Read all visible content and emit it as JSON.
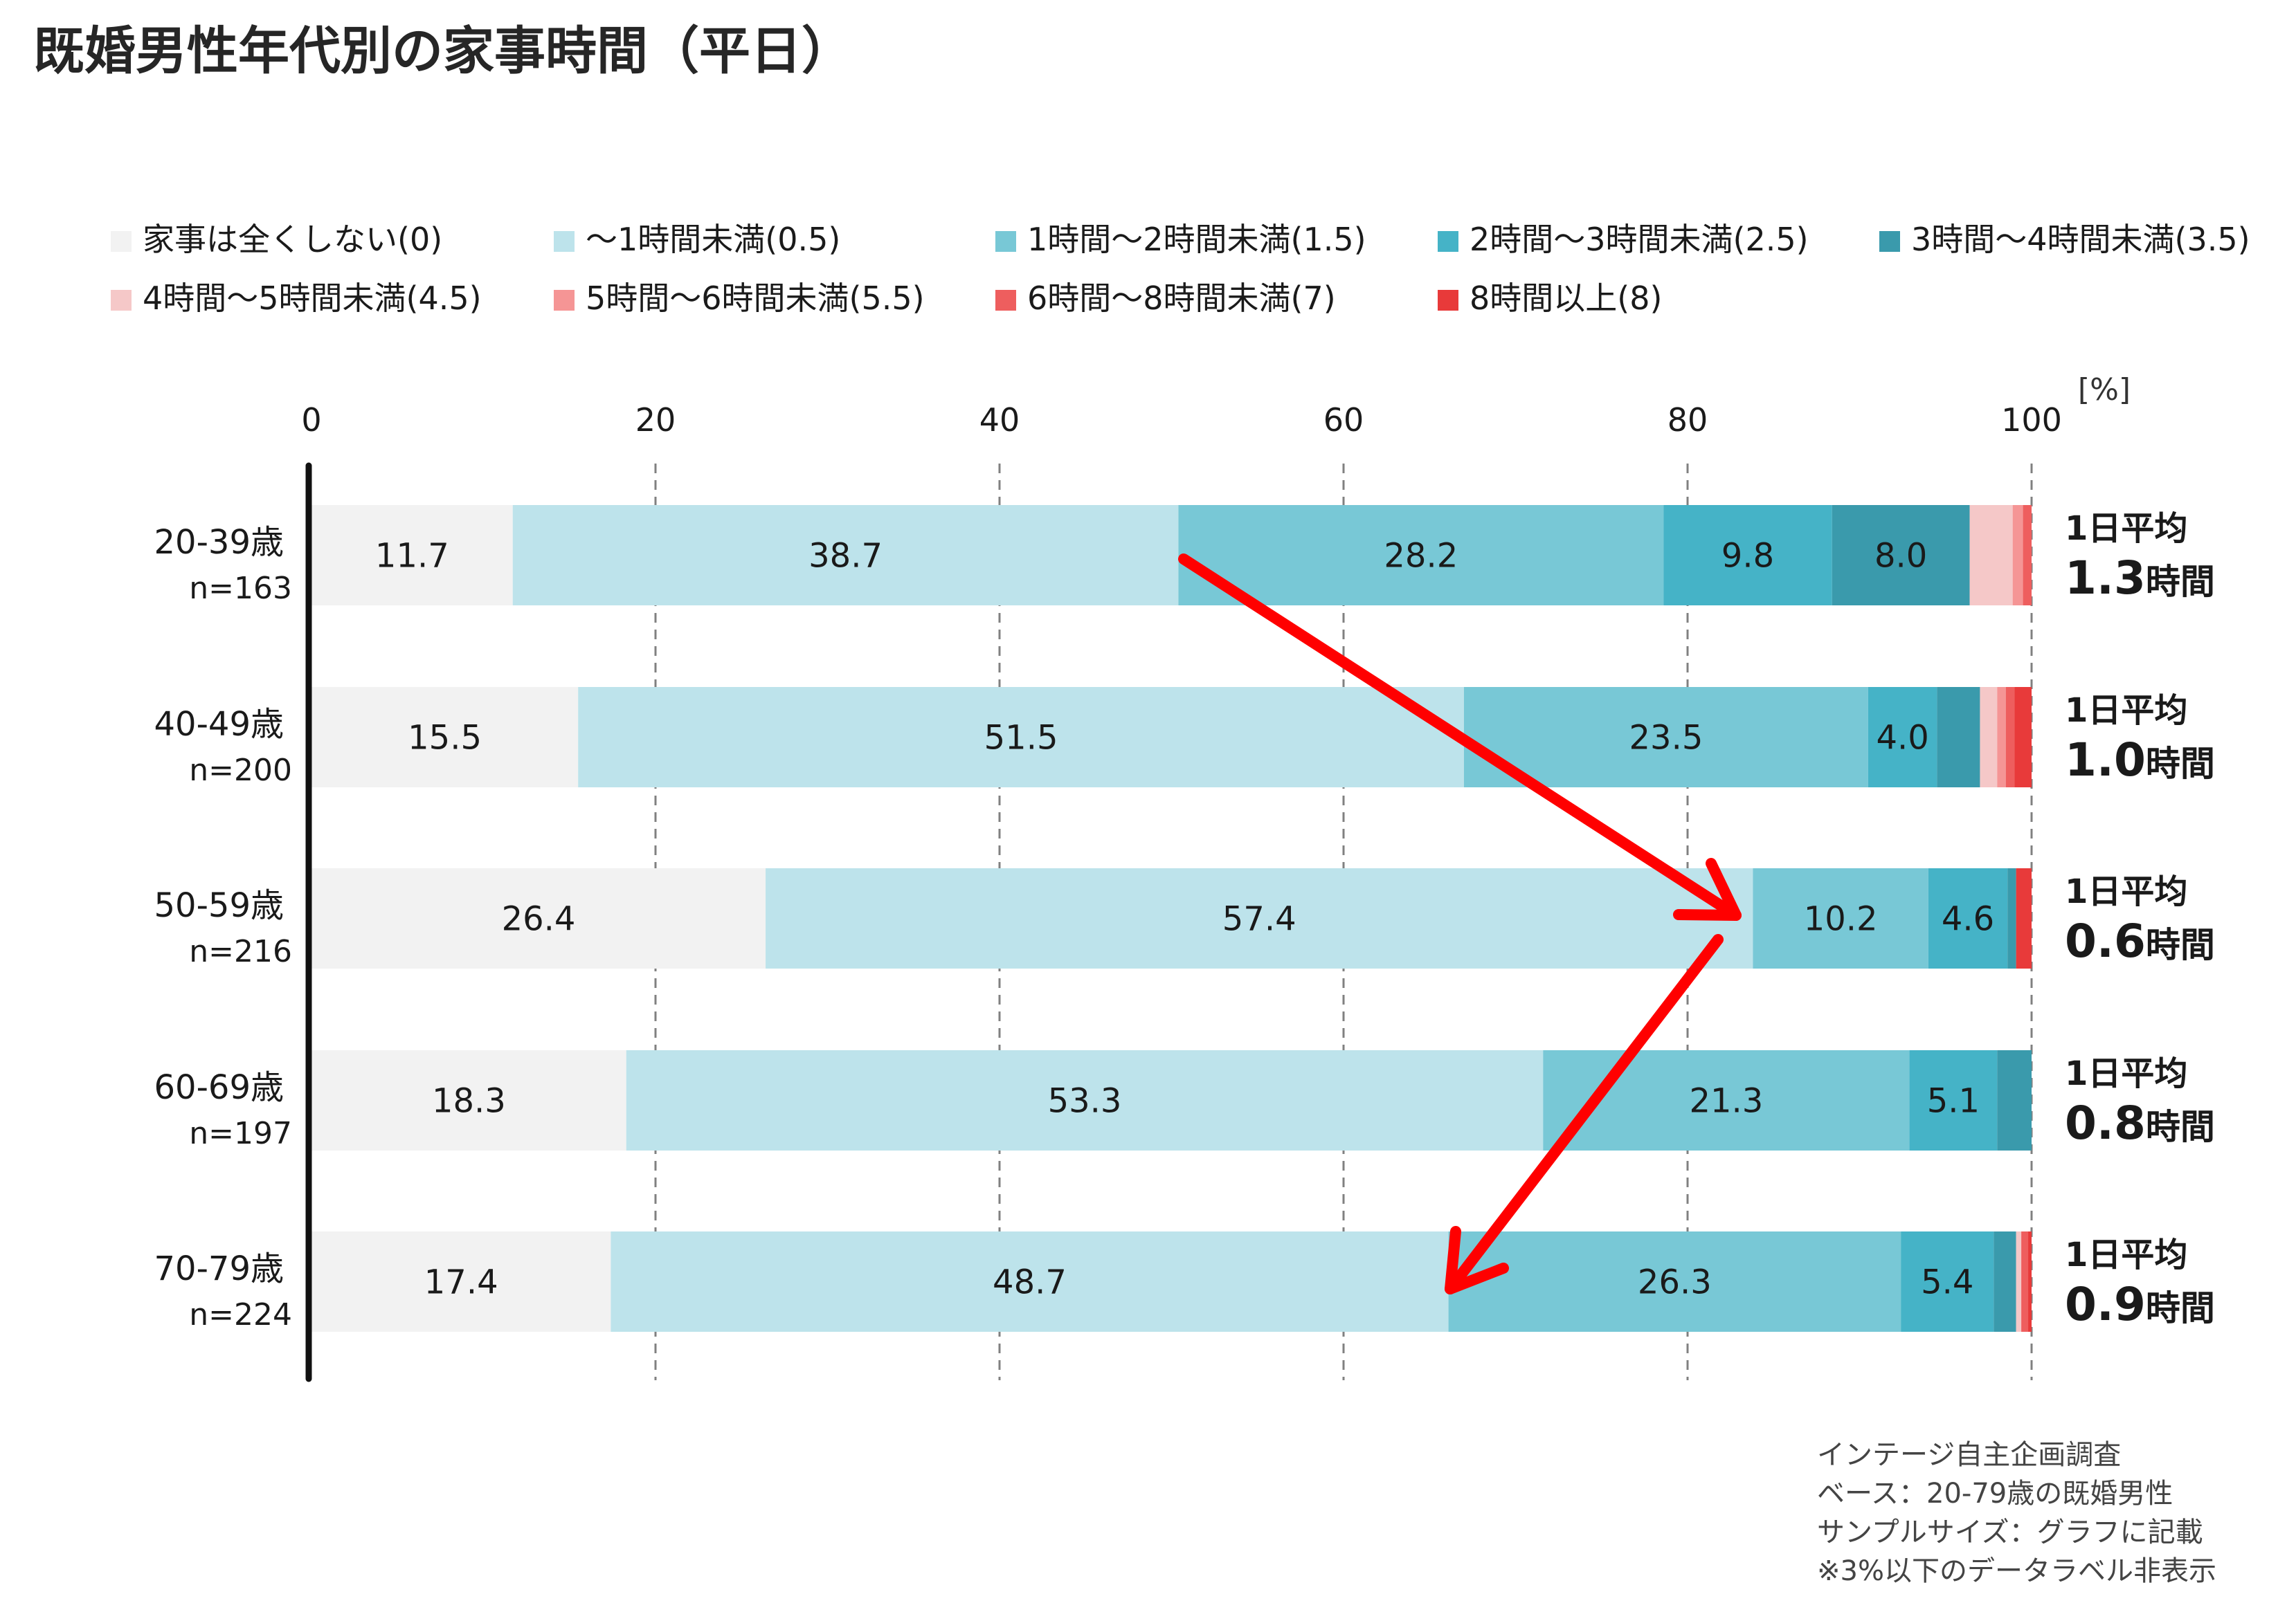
{
  "title": "既婚男性年代別の家事時間（平日）",
  "unit_label": "[%]",
  "source_lines": [
    "インテージ自主企画調査",
    "ベース：20-79歳の既婚男性",
    "サンプルサイズ：グラフに記載",
    "※3%以下のデータラベル非表示"
  ],
  "chart_data": {
    "type": "bar",
    "orientation": "horizontal",
    "stacked": true,
    "xlim": [
      0,
      100
    ],
    "x_ticks": [
      0,
      20,
      40,
      60,
      80,
      100
    ],
    "grid": true,
    "legend_position": "top",
    "label_threshold": 3,
    "categories": [
      {
        "label": "20-39歳",
        "n": "n=163",
        "avg_prefix": "1日平均",
        "avg_value": "1.3",
        "avg_unit": "時間"
      },
      {
        "label": "40-49歳",
        "n": "n=200",
        "avg_prefix": "1日平均",
        "avg_value": "1.0",
        "avg_unit": "時間"
      },
      {
        "label": "50-59歳",
        "n": "n=216",
        "avg_prefix": "1日平均",
        "avg_value": "0.6",
        "avg_unit": "時間"
      },
      {
        "label": "60-69歳",
        "n": "n=197",
        "avg_prefix": "1日平均",
        "avg_value": "0.8",
        "avg_unit": "時間"
      },
      {
        "label": "70-79歳",
        "n": "n=224",
        "avg_prefix": "1日平均",
        "avg_value": "0.9",
        "avg_unit": "時間"
      }
    ],
    "series": [
      {
        "name": "家事は全くしない(0)",
        "color": "#f2f2f2",
        "values": [
          11.7,
          15.5,
          26.4,
          18.3,
          17.4
        ]
      },
      {
        "name": "〜1時間未満(0.5)",
        "color": "#bde3eb",
        "values": [
          38.7,
          51.5,
          57.4,
          53.3,
          48.7
        ]
      },
      {
        "name": "1時間〜2時間未満(1.5)",
        "color": "#78c8d6",
        "values": [
          28.2,
          23.5,
          10.2,
          21.3,
          26.3
        ]
      },
      {
        "name": "2時間〜3時間未満(2.5)",
        "color": "#45b3c7",
        "values": [
          9.8,
          4.0,
          4.6,
          5.1,
          5.4
        ]
      },
      {
        "name": "3時間〜4時間未満(3.5)",
        "color": "#3a9aac",
        "values": [
          8.0,
          2.5,
          0.5,
          2.0,
          1.3
        ]
      },
      {
        "name": "4時間〜5時間未満(4.5)",
        "color": "#f5c8c8",
        "values": [
          2.5,
          1.0,
          0.0,
          0.0,
          0.3
        ]
      },
      {
        "name": "5時間〜6時間未満(5.5)",
        "color": "#f59595",
        "values": [
          0.6,
          0.5,
          0.0,
          0.0,
          0.0
        ]
      },
      {
        "name": "6時間〜8時間未満(7)",
        "color": "#ee5e5e",
        "values": [
          0.5,
          0.5,
          0.0,
          0.0,
          0.4
        ]
      },
      {
        "name": "8時間以上(8)",
        "color": "#e83a3a",
        "values": [
          0.0,
          1.0,
          0.9,
          0.0,
          0.2
        ]
      }
    ]
  }
}
